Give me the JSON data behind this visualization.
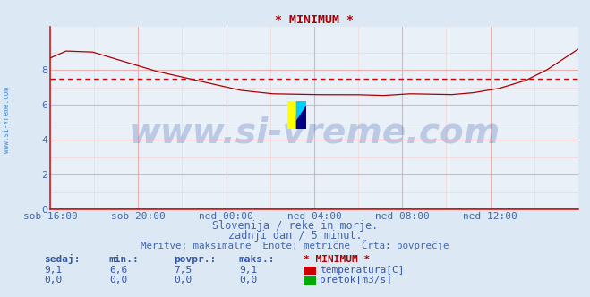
{
  "title": "* MINIMUM *",
  "bg_color": "#dce8f4",
  "plot_bg_color": "#eaf0f8",
  "grid_major_color": "#e8b0b0",
  "grid_minor_color": "#f4d8d8",
  "ylabel_ticks": [
    0,
    2,
    4,
    6,
    8
  ],
  "ylim": [
    0,
    10.5
  ],
  "xlim_max": 1728,
  "x_tick_labels": [
    "sob 16:00",
    "sob 20:00",
    "ned 00:00",
    "ned 04:00",
    "ned 08:00",
    "ned 12:00"
  ],
  "x_tick_positions": [
    0,
    288,
    576,
    864,
    1152,
    1440
  ],
  "avg_line_value": 7.5,
  "avg_line_color": "#cc0000",
  "temp_line_color": "#aa0000",
  "flow_line_color": "#007700",
  "watermark_text": "www.si-vreme.com",
  "watermark_color": "#3355aa",
  "watermark_alpha": 0.25,
  "watermark_fontsize": 28,
  "left_label": "www.si-vreme.com",
  "left_label_color": "#4488cc",
  "subtitle1": "Slovenija / reke in morje.",
  "subtitle2": "zadnji dan / 5 minut.",
  "subtitle3": "Meritve: maksimalne  Enote: metrične  Črta: povprečje",
  "subtitle_color": "#4466aa",
  "subtitle_fontsize": 8.5,
  "legend_header": "* MINIMUM *",
  "legend_header_color": "#aa0000",
  "legend_temp_label": "temperatura[C]",
  "legend_flow_label": "pretok[m3/s]",
  "legend_color": "#3355aa",
  "table_headers": [
    "sedaj:",
    "min.:",
    "povpr.:",
    "maks.:"
  ],
  "table_temp": [
    "9,1",
    "6,6",
    "7,5",
    "9,1"
  ],
  "table_flow": [
    "0,0",
    "0,0",
    "0,0",
    "0,0"
  ],
  "axis_color": "#cc2222",
  "tick_label_color": "#4466aa",
  "tick_label_fontsize": 8,
  "temp_box_color": "#cc0000",
  "flow_box_color": "#00aa00",
  "logo_yellow": "#ffff00",
  "logo_cyan": "#00ccff",
  "logo_darkblue": "#000080"
}
